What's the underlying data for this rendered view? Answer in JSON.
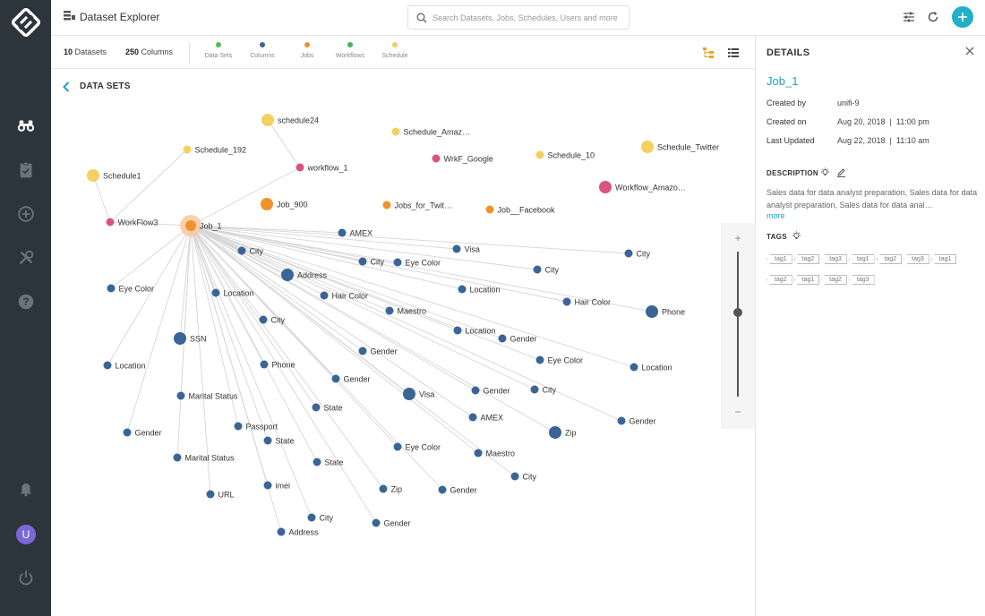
{
  "app": {
    "title": "Dataset Explorer",
    "search_placeholder": "Search Datasets, Jobs, Schedules, Users and more",
    "user_initial": "U"
  },
  "stats": {
    "datasets_count": "10",
    "datasets_label": "Datasets",
    "columns_count": "250",
    "columns_label": "Columns"
  },
  "legend": [
    {
      "label": "Data Sets",
      "color": "#5cb85c"
    },
    {
      "label": "Columns",
      "color": "#3b6497"
    },
    {
      "label": "Jobs",
      "color": "#f0922b"
    },
    {
      "label": "Workflows",
      "color": "#4caf50"
    },
    {
      "label": "Schedule",
      "color": "#f0cf5a"
    }
  ],
  "breadcrumb": "DATA SETS",
  "colors": {
    "column": "#3b6497",
    "job": "#f0922b",
    "schedule": "#f3d060",
    "workflow": "#d9557e",
    "accent": "#21b0c8"
  },
  "graph": {
    "nodes": [
      {
        "id": "schedule24",
        "label": "schedule24",
        "kind": "schedule",
        "big": true
      },
      {
        "id": "schedule_amazon",
        "label": "Schedule_Amaz…",
        "kind": "schedule"
      },
      {
        "id": "schedule_192",
        "label": "Schedule_192",
        "kind": "schedule"
      },
      {
        "id": "workflow_1",
        "label": "workflow_1",
        "kind": "workflow"
      },
      {
        "id": "wrkf_google",
        "label": "WrkF_Google",
        "kind": "workflow"
      },
      {
        "id": "schedule_10",
        "label": "Schedule_10",
        "kind": "schedule"
      },
      {
        "id": "schedule_twitter",
        "label": "Schedule_Twitter",
        "kind": "schedule",
        "big": true
      },
      {
        "id": "schedule1",
        "label": "Schedule1",
        "kind": "schedule",
        "big": true
      },
      {
        "id": "workflow_amazon",
        "label": "Workflow_Amazo…",
        "kind": "workflow",
        "big": true
      },
      {
        "id": "job_900",
        "label": "Job_900",
        "kind": "job",
        "big": true
      },
      {
        "id": "jobs_for_twitter",
        "label": "Jobs_for_Twit…",
        "kind": "job"
      },
      {
        "id": "job_facebook",
        "label": "Job__Facebook",
        "kind": "job"
      },
      {
        "id": "workflow3",
        "label": "WorkFlow3",
        "kind": "workflow"
      },
      {
        "id": "job_1",
        "label": "Job_1",
        "kind": "job",
        "selected": true
      },
      {
        "id": "c1",
        "label": "AMEX",
        "kind": "column"
      },
      {
        "id": "c2",
        "label": "City",
        "kind": "column"
      },
      {
        "id": "c3",
        "label": "Visa",
        "kind": "column"
      },
      {
        "id": "c4",
        "label": "City",
        "kind": "column"
      },
      {
        "id": "c5",
        "label": "City",
        "kind": "column"
      },
      {
        "id": "c6",
        "label": "Eye Color",
        "kind": "column"
      },
      {
        "id": "c7",
        "label": "Address",
        "kind": "column",
        "big": true
      },
      {
        "id": "c8",
        "label": "City",
        "kind": "column"
      },
      {
        "id": "c9",
        "label": "Eye Color",
        "kind": "column"
      },
      {
        "id": "c10",
        "label": "Location",
        "kind": "column"
      },
      {
        "id": "c11",
        "label": "Location",
        "kind": "column"
      },
      {
        "id": "c12",
        "label": "Hair Color",
        "kind": "column"
      },
      {
        "id": "c13",
        "label": "Hair Color",
        "kind": "column"
      },
      {
        "id": "c14",
        "label": "Phone",
        "kind": "column",
        "big": true
      },
      {
        "id": "c15",
        "label": "Maestro",
        "kind": "column"
      },
      {
        "id": "c16",
        "label": "City",
        "kind": "column"
      },
      {
        "id": "c17",
        "label": "Location",
        "kind": "column"
      },
      {
        "id": "c18",
        "label": "Gender",
        "kind": "column"
      },
      {
        "id": "c19",
        "label": "SSN",
        "kind": "column",
        "big": true
      },
      {
        "id": "c20",
        "label": "Gender",
        "kind": "column"
      },
      {
        "id": "c21",
        "label": "Eye Color",
        "kind": "column"
      },
      {
        "id": "c22",
        "label": "Location",
        "kind": "column"
      },
      {
        "id": "c23",
        "label": "Phone",
        "kind": "column"
      },
      {
        "id": "c24",
        "label": "Location",
        "kind": "column"
      },
      {
        "id": "c25",
        "label": "Gender",
        "kind": "column"
      },
      {
        "id": "c26",
        "label": "Visa",
        "kind": "column",
        "big": true
      },
      {
        "id": "c27",
        "label": "Gender",
        "kind": "column"
      },
      {
        "id": "c28",
        "label": "City",
        "kind": "column"
      },
      {
        "id": "c29",
        "label": "Marital Status",
        "kind": "column"
      },
      {
        "id": "c30",
        "label": "State",
        "kind": "column"
      },
      {
        "id": "c31",
        "label": "AMEX",
        "kind": "column"
      },
      {
        "id": "c32",
        "label": "Gender",
        "kind": "column"
      },
      {
        "id": "c33",
        "label": "Passport",
        "kind": "column"
      },
      {
        "id": "c34",
        "label": "Gender",
        "kind": "column"
      },
      {
        "id": "c35",
        "label": "Zip",
        "kind": "column",
        "big": true
      },
      {
        "id": "c36",
        "label": "State",
        "kind": "column"
      },
      {
        "id": "c37",
        "label": "Eye Color",
        "kind": "column"
      },
      {
        "id": "c38",
        "label": "Marital Status",
        "kind": "column"
      },
      {
        "id": "c39",
        "label": "Maestro",
        "kind": "column"
      },
      {
        "id": "c40",
        "label": "State",
        "kind": "column"
      },
      {
        "id": "c41",
        "label": "City",
        "kind": "column"
      },
      {
        "id": "c42",
        "label": "imei",
        "kind": "column"
      },
      {
        "id": "c43",
        "label": "Zip",
        "kind": "column"
      },
      {
        "id": "c44",
        "label": "Gender",
        "kind": "column"
      },
      {
        "id": "c45",
        "label": "URL",
        "kind": "column"
      },
      {
        "id": "c46",
        "label": "City",
        "kind": "column"
      },
      {
        "id": "c47",
        "label": "Gender",
        "kind": "column"
      },
      {
        "id": "c48",
        "label": "Address",
        "kind": "column"
      }
    ]
  },
  "details": {
    "heading": "DETAILS",
    "job_name": "Job_1",
    "fields": [
      {
        "key": "Created by",
        "value": "unifi-9"
      },
      {
        "key": "Created on",
        "value": "Aug 20, 2018  |  11:00 pm"
      },
      {
        "key": "Last Updated",
        "value": "Aug 22, 2018  |  11:10 am"
      }
    ],
    "description_heading": "DESCRIPTION",
    "description": "Sales data for data analyst preparation, Sales data for data analyst preparation, Sales data for data anal…",
    "more_label": "more",
    "tags_heading": "TAGS",
    "tags": [
      "tag1",
      "tag2",
      "tag3",
      "tag1",
      "tag2",
      "tag3",
      "tag1",
      "tag2",
      "tag1",
      "tag2",
      "tag3"
    ]
  },
  "zoom": {
    "plus": "+",
    "minus": "−"
  }
}
